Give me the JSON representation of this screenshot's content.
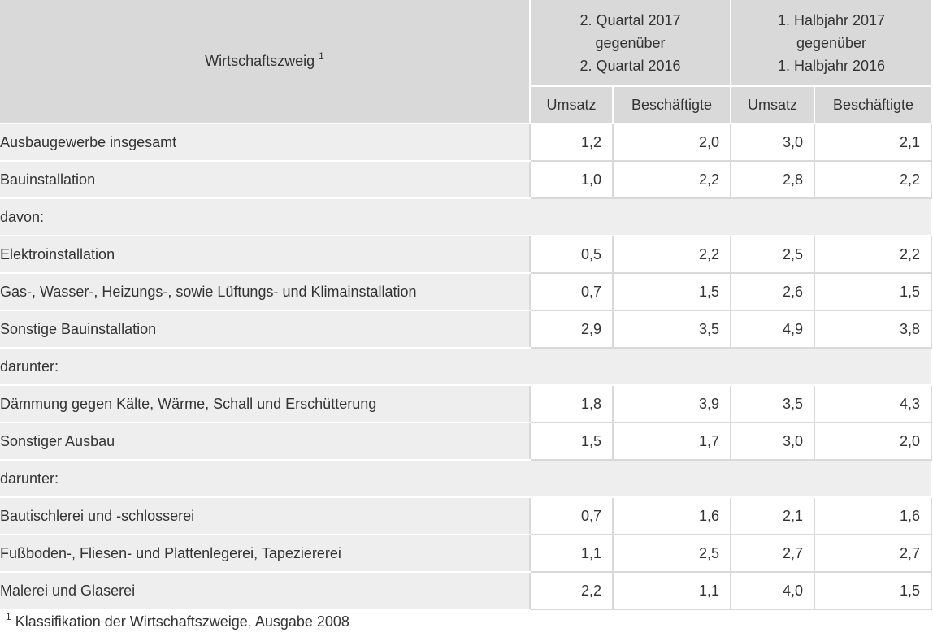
{
  "header": {
    "branch_label": "Wirtschaftszweig",
    "branch_footnote_mark": "1",
    "period1": [
      "2. Quartal 2017",
      "gegenüber",
      "2. Quartal 2016"
    ],
    "period2": [
      "1. Halbjahr 2017",
      "gegenüber",
      "1. Halbjahr 2016"
    ],
    "sub": [
      "Umsatz",
      "Beschäftigte",
      "Umsatz",
      "Beschäftigte"
    ]
  },
  "rows": [
    {
      "label": "Ausbaugewerbe insgesamt",
      "values": [
        "1,2",
        "2,0",
        "3,0",
        "2,1"
      ]
    },
    {
      "label": "Bauinstallation",
      "values": [
        "1,0",
        "2,2",
        "2,8",
        "2,2"
      ]
    },
    {
      "label": "davon:"
    },
    {
      "label": "Elektroinstallation",
      "values": [
        "0,5",
        "2,2",
        "2,5",
        "2,2"
      ]
    },
    {
      "label": "Gas-, Wasser-, Heizungs-, sowie Lüftungs- und Klimainstallation",
      "values": [
        "0,7",
        "1,5",
        "2,6",
        "1,5"
      ]
    },
    {
      "label": "Sonstige Bauinstallation",
      "values": [
        "2,9",
        "3,5",
        "4,9",
        "3,8"
      ]
    },
    {
      "label": "darunter:"
    },
    {
      "label": "Dämmung gegen Kälte, Wärme, Schall und Erschütterung",
      "values": [
        "1,8",
        "3,9",
        "3,5",
        "4,3"
      ]
    },
    {
      "label": "Sonstiger Ausbau",
      "values": [
        "1,5",
        "1,7",
        "3,0",
        "2,0"
      ]
    },
    {
      "label": "darunter:"
    },
    {
      "label": "Bautischlerei und -schlosserei",
      "values": [
        "0,7",
        "1,6",
        "2,1",
        "1,6"
      ]
    },
    {
      "label": "Fußboden-, Fliesen- und Plattenlegerei, Tapeziererei",
      "values": [
        "1,1",
        "2,5",
        "2,7",
        "2,7"
      ]
    },
    {
      "label": "Malerei und Glaserei",
      "values": [
        "2,2",
        "1,1",
        "4,0",
        "1,5"
      ]
    }
  ],
  "footnote": {
    "mark": "1",
    "text": "Klassifikation der Wirtschaftszweige, Ausgabe 2008"
  }
}
